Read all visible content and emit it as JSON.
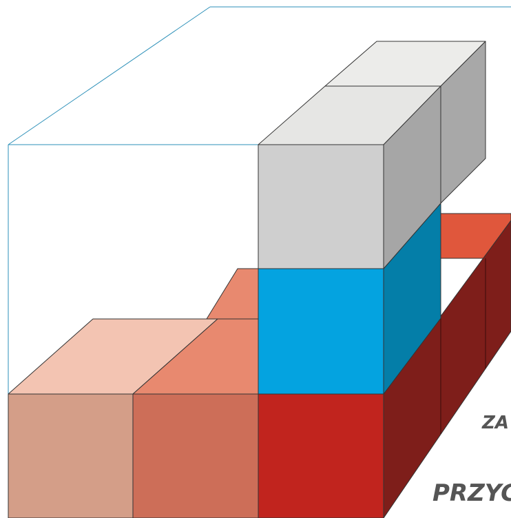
{
  "labels": {
    "upper": "ZA",
    "lower": "PRZYC"
  }
}
